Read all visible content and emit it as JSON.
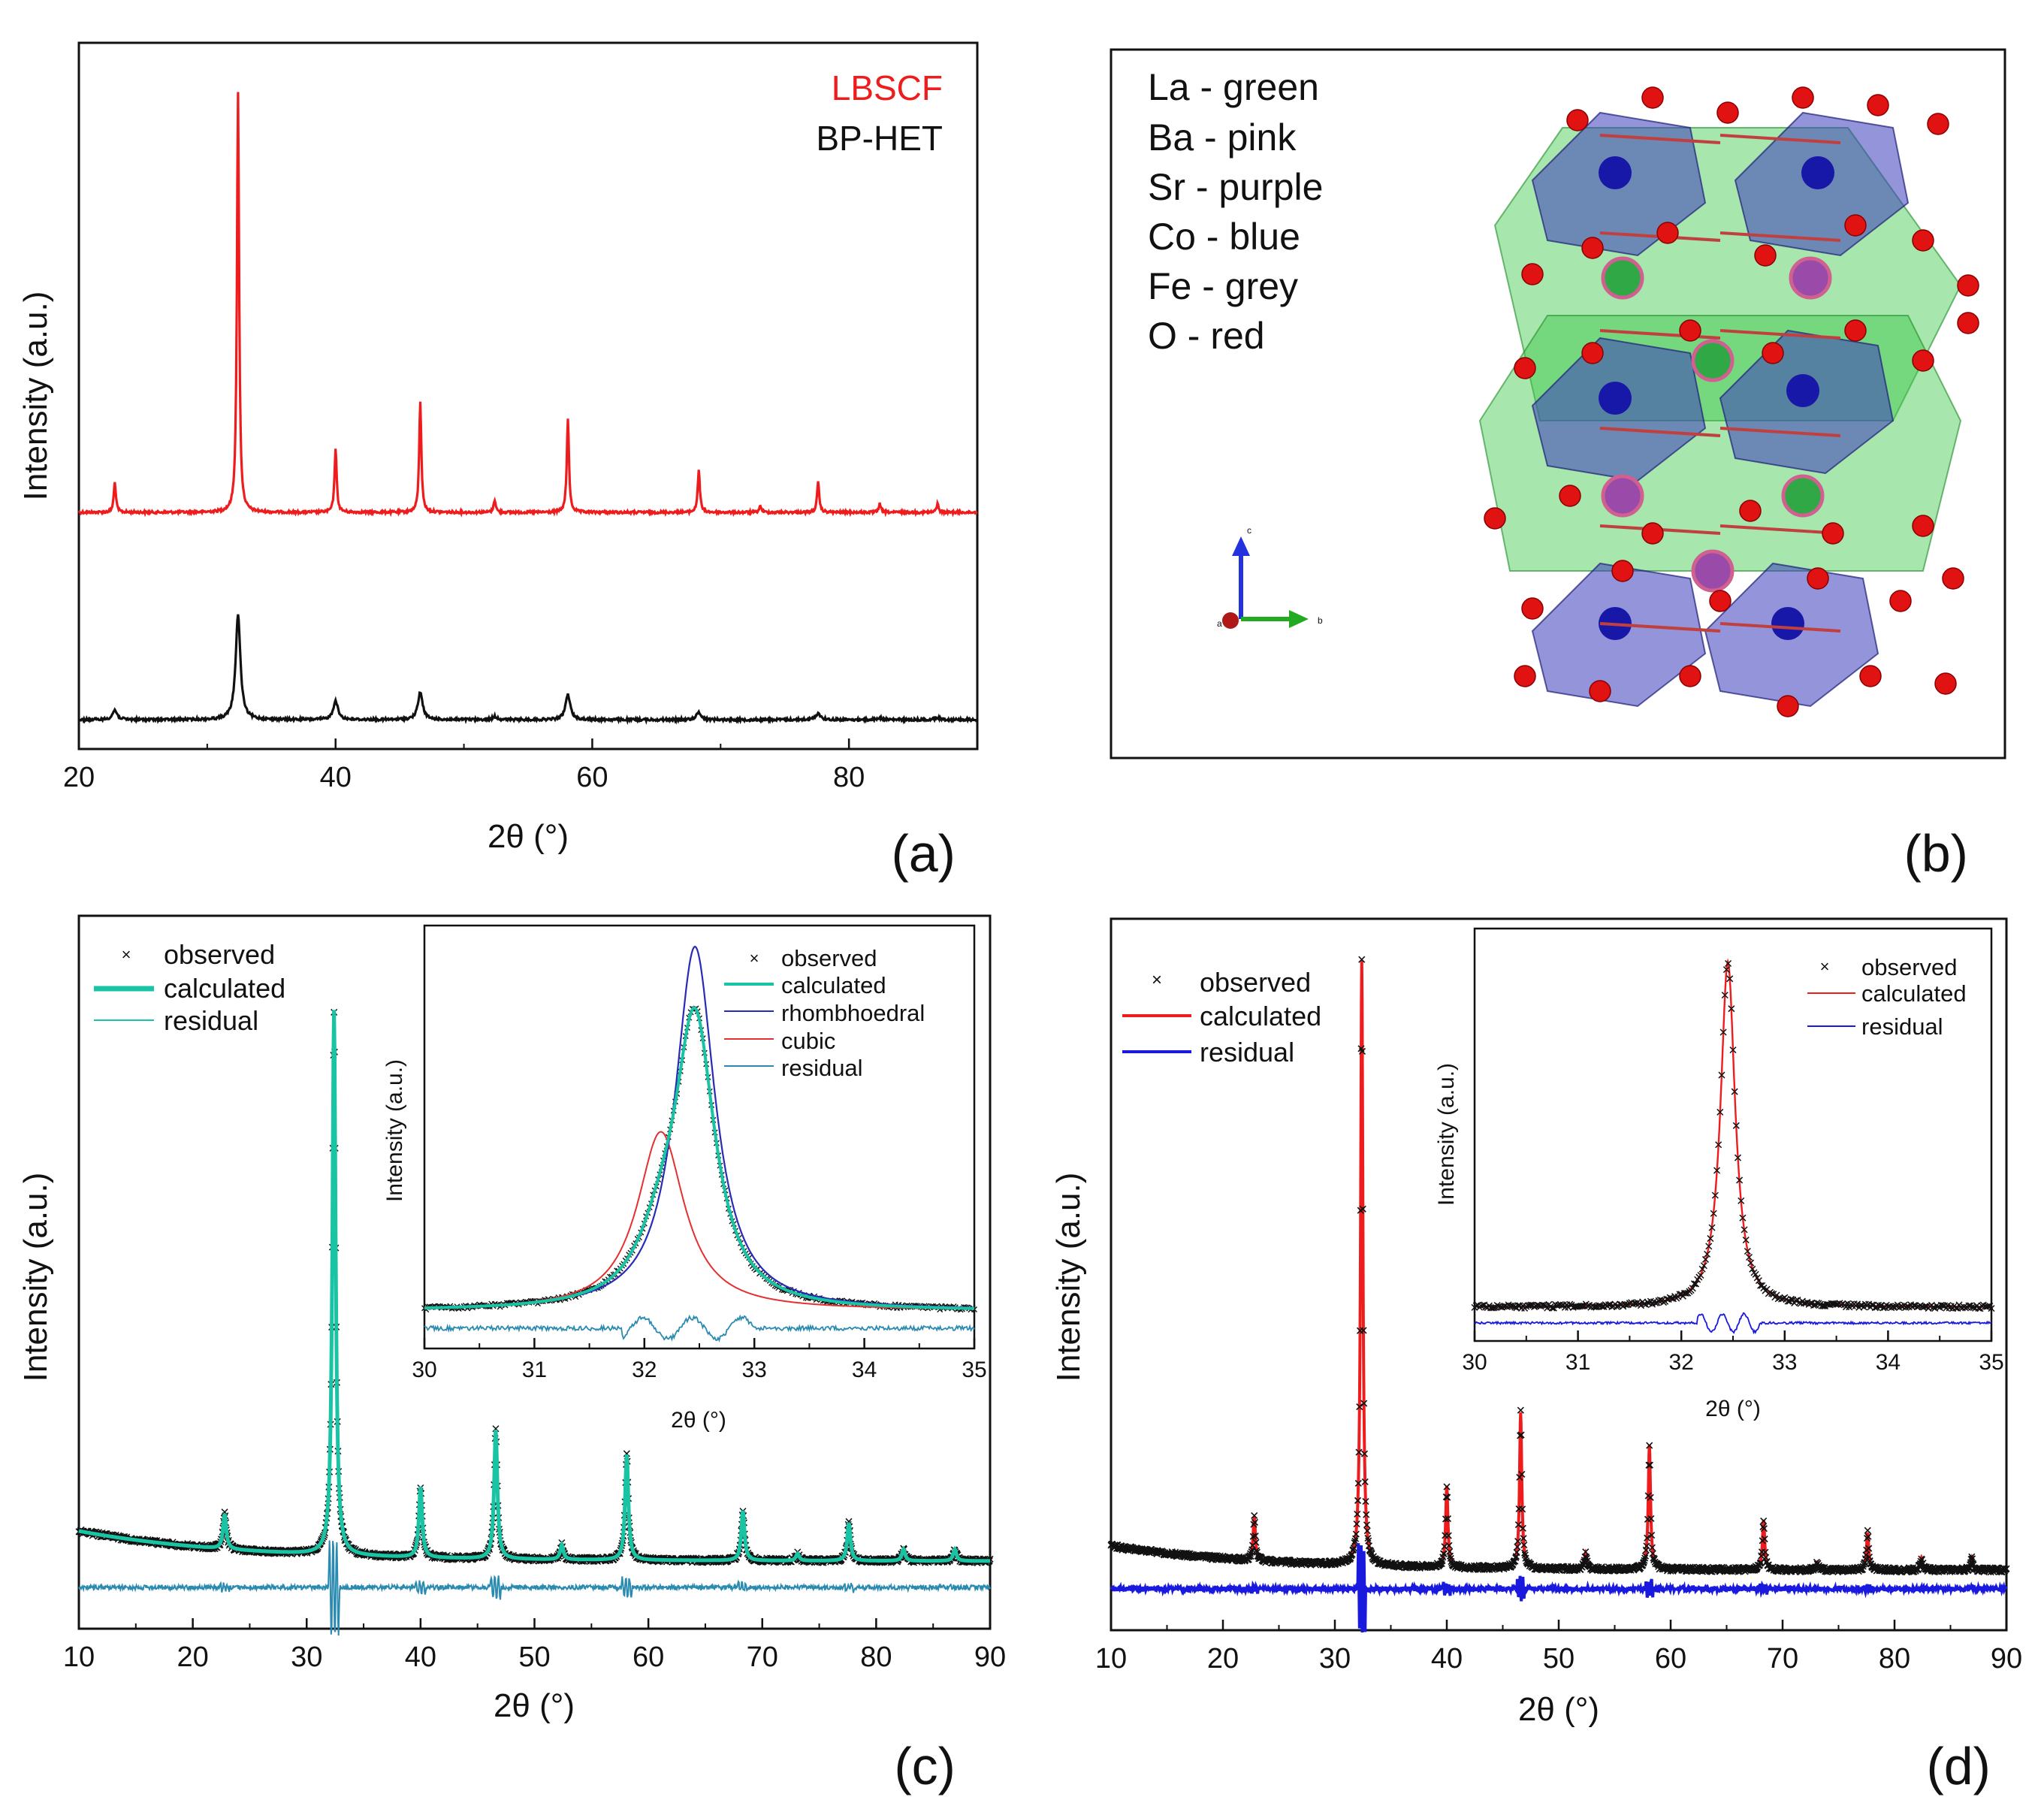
{
  "colors": {
    "red": "#ee1c1c",
    "black": "#111111",
    "teal": "#19c4a4",
    "residual_c": "#2a8ab0",
    "navy": "#2a2ab8",
    "blue": "#1a1adf",
    "cubic": "#e43030"
  },
  "chart_data": [
    {
      "id": "a",
      "type": "line",
      "panel_label": "(a)",
      "xlabel": "2θ (°)",
      "ylabel": "Intensity (a.u.)",
      "xlim": [
        20,
        90
      ],
      "xticks": [
        20,
        40,
        60,
        80
      ],
      "legend": [
        "LBSCF",
        "BP-HET"
      ],
      "series": [
        {
          "name": "LBSCF",
          "color": "#ee1c1c",
          "peaks": [
            [
              22.8,
              0.07
            ],
            [
              32.4,
              0.98
            ],
            [
              40.0,
              0.15
            ],
            [
              46.6,
              0.26
            ],
            [
              52.4,
              0.03
            ],
            [
              58.1,
              0.22
            ],
            [
              68.3,
              0.1
            ],
            [
              73.1,
              0.015
            ],
            [
              77.6,
              0.07
            ],
            [
              82.4,
              0.02
            ],
            [
              86.9,
              0.02
            ]
          ]
        },
        {
          "name": "BP-HET",
          "color": "#111111",
          "peaks": [
            [
              22.8,
              0.045
            ],
            [
              32.4,
              0.5
            ],
            [
              40.0,
              0.09
            ],
            [
              46.6,
              0.13
            ],
            [
              52.4,
              0.015
            ],
            [
              58.1,
              0.12
            ],
            [
              68.3,
              0.035
            ],
            [
              77.6,
              0.03
            ],
            [
              82.4,
              0.008
            ],
            [
              86.9,
              0.01
            ]
          ]
        }
      ]
    },
    {
      "id": "c",
      "type": "line",
      "panel_label": "(c)",
      "xlabel": "2θ (°)",
      "ylabel": "Intensity (a.u.)",
      "xlim": [
        10,
        90
      ],
      "xticks": [
        10,
        20,
        30,
        40,
        50,
        60,
        70,
        80,
        90
      ],
      "legend": [
        "observed",
        "calculated",
        "residual"
      ],
      "peaks": [
        [
          22.8,
          0.06
        ],
        [
          32.4,
          0.93
        ],
        [
          40.0,
          0.12
        ],
        [
          46.6,
          0.22
        ],
        [
          52.4,
          0.025
        ],
        [
          58.1,
          0.18
        ],
        [
          68.3,
          0.085
        ],
        [
          73.1,
          0.012
        ],
        [
          77.6,
          0.065
        ],
        [
          82.4,
          0.02
        ],
        [
          86.9,
          0.02
        ]
      ],
      "inset": {
        "xlabel": "2θ (°)",
        "ylabel": "Intensity (a.u.)",
        "xlim": [
          30,
          35
        ],
        "xticks": [
          30,
          31,
          32,
          33,
          34,
          35
        ],
        "legend": [
          "observed",
          "calculated",
          "rhombhoedral",
          "cubic",
          "residual"
        ]
      }
    },
    {
      "id": "d",
      "type": "line",
      "panel_label": "(d)",
      "xlabel": "2θ (°)",
      "ylabel": "Intensity (a.u.)",
      "xlim": [
        10,
        90
      ],
      "xticks": [
        10,
        20,
        30,
        40,
        50,
        60,
        70,
        80,
        90
      ],
      "legend": [
        "observed",
        "calculated",
        "residual"
      ],
      "peaks": [
        [
          22.8,
          0.07
        ],
        [
          32.4,
          0.97
        ],
        [
          40.0,
          0.13
        ],
        [
          46.6,
          0.25
        ],
        [
          52.4,
          0.025
        ],
        [
          58.1,
          0.2
        ],
        [
          68.3,
          0.08
        ],
        [
          73.1,
          0.012
        ],
        [
          77.6,
          0.06
        ],
        [
          82.4,
          0.02
        ],
        [
          86.9,
          0.02
        ]
      ],
      "inset": {
        "xlabel": "2θ (°)",
        "ylabel": "Intensity (a.u.)",
        "xlim": [
          30,
          35
        ],
        "xticks": [
          30,
          31,
          32,
          33,
          34,
          35
        ],
        "legend": [
          "observed",
          "calculated",
          "residual"
        ]
      }
    }
  ],
  "panel_b": {
    "label": "(b)",
    "elements": [
      "La - green",
      "Ba - pink",
      "Sr - purple",
      "Co - blue",
      "Fe - grey",
      "O - red"
    ],
    "axes": {
      "c": "c",
      "b": "b",
      "a": "a"
    }
  }
}
